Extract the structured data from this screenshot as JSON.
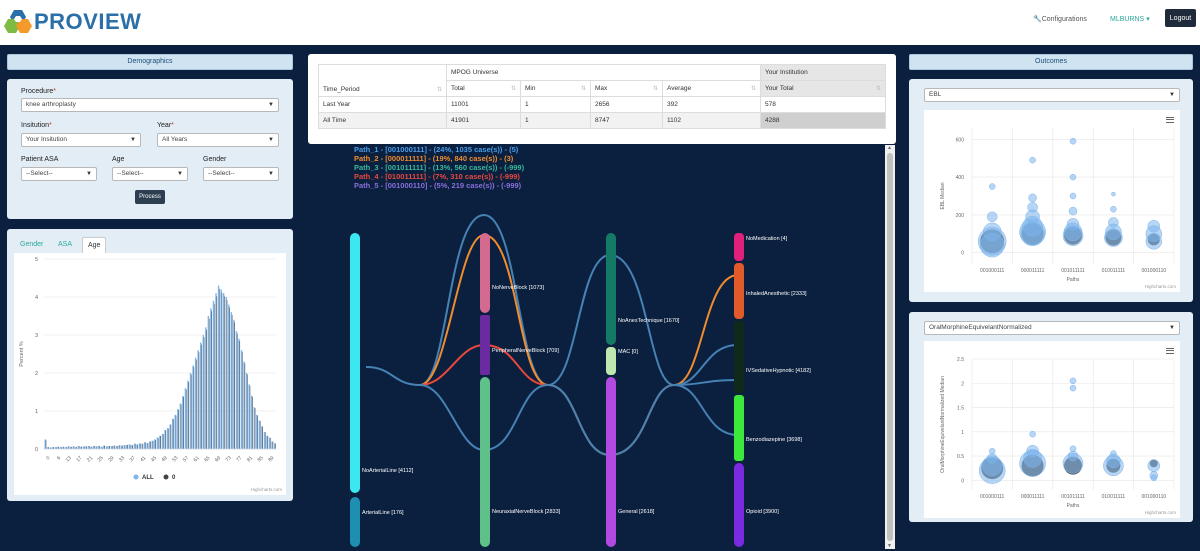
{
  "header": {
    "logo": "PROVIEW",
    "configurations": "Configurations",
    "user": "MLBURNS",
    "logout": "Logout"
  },
  "demographics": {
    "title": "Demographics",
    "procedure_label": "Procedure",
    "procedure_value": "knee arthroplasty",
    "institution_label": "Insitution",
    "institution_value": "Your Insitution",
    "year_label": "Year",
    "year_value": "All Years",
    "asa_label": "Patient ASA",
    "asa_value": "--Select--",
    "age_label": "Age",
    "age_value": "--Select--",
    "gender_label": "Gender",
    "gender_value": "--Select--",
    "process": "Process"
  },
  "age_panel": {
    "tabs": [
      "Gender",
      "ASA",
      "Age"
    ],
    "credit": "Highcharts.com"
  },
  "summary_table": {
    "col_period": "Time_Period",
    "group_universe": "MPOG Universe",
    "group_institution": "Your Institution",
    "columns": [
      "Total",
      "Min",
      "Max",
      "Average",
      "Your Total"
    ],
    "rows": [
      {
        "period": "Last Year",
        "values": [
          "11001",
          "1",
          "2656",
          "392",
          "578"
        ]
      },
      {
        "period": "All Time",
        "values": [
          "41901",
          "1",
          "8747",
          "1102",
          "4288"
        ]
      }
    ]
  },
  "sankey": {
    "legend": [
      {
        "text": "Path_1 - [001000111] - (24%, 1035 case(s)) - (5)",
        "color": "#4a9ee8"
      },
      {
        "text": "Path_2 - [000011111] - (19%, 840 case(s)) - (3)",
        "color": "#f08c2e"
      },
      {
        "text": "Path_3 - [001011111] - (13%, 560 case(s)) - (-999)",
        "color": "#3cb89a"
      },
      {
        "text": "Path_4 - [010011111] - (7%, 310 case(s)) - (-999)",
        "color": "#e8493c"
      },
      {
        "text": "Path_5 - [001000110] - (5%, 219 case(s)) - (-999)",
        "color": "#8a6fd8"
      }
    ],
    "nodes": {
      "no_arterial": "NoArterialLine [4112]",
      "arterial": "ArterialLine [176]",
      "no_nerve": "NoNerveBlock [1073]",
      "peripheral": "PeripheralNerveBlock [709]",
      "neuraxial": "NeuraxialNerveBlock [2833]",
      "no_anes": "NoAnesTechnique [1670]",
      "mac": "MAC [0]",
      "general": "General [2618]",
      "no_med": "NoMedication [4]",
      "inhaled": "InhaledAnesthetic [2333]",
      "iv_sed": "IVSedativeHypnotic [4182]",
      "benzo": "Benzodiazepine [3698]",
      "opioid": "Opioid [3900]"
    }
  },
  "outcomes": {
    "title": "Outcomes",
    "credit": "Highcharts.com",
    "ebl_select": "EBL",
    "ome_select": "OralMorphineEquivelantNormalized"
  },
  "chart_data": [
    {
      "type": "bar",
      "ylabel": "Percent %",
      "ylim": [
        0,
        5
      ],
      "yticks": [
        0,
        1,
        2,
        3,
        4,
        5
      ],
      "xticks": [
        "0",
        "6",
        "13",
        "17",
        "21",
        "25",
        "29",
        "33",
        "37",
        "41",
        "45",
        "49",
        "53",
        "57",
        "61",
        "65",
        "69",
        "73",
        "77",
        "81",
        "85",
        "89"
      ],
      "legend": [
        "ALL",
        "0"
      ],
      "series_colors": [
        "#7cb5ec",
        "#434348"
      ],
      "x_start": 0,
      "values": [
        0.25,
        0.05,
        0.04,
        0.05,
        0.05,
        0.06,
        0.05,
        0.06,
        0.05,
        0.07,
        0.06,
        0.07,
        0.05,
        0.08,
        0.06,
        0.07,
        0.07,
        0.08,
        0.06,
        0.08,
        0.07,
        0.08,
        0.06,
        0.09,
        0.07,
        0.08,
        0.08,
        0.09,
        0.08,
        0.1,
        0.09,
        0.1,
        0.11,
        0.12,
        0.1,
        0.14,
        0.12,
        0.15,
        0.14,
        0.18,
        0.16,
        0.2,
        0.22,
        0.25,
        0.3,
        0.35,
        0.4,
        0.5,
        0.55,
        0.65,
        0.8,
        0.9,
        1.05,
        1.2,
        1.4,
        1.6,
        1.8,
        2.0,
        2.2,
        2.4,
        2.6,
        2.8,
        3.0,
        3.2,
        3.5,
        3.7,
        3.9,
        4.1,
        4.3,
        4.2,
        4.1,
        4.0,
        3.8,
        3.6,
        3.4,
        3.1,
        2.9,
        2.6,
        2.3,
        2.0,
        1.7,
        1.4,
        1.1,
        0.9,
        0.75,
        0.6,
        0.45,
        0.35,
        0.3,
        0.2,
        0.15
      ]
    },
    {
      "type": "scatter",
      "xlabel": "Paths",
      "ylabel": "EBL Median",
      "ylim": [
        -60,
        660
      ],
      "yticks": [
        0,
        200,
        400,
        600
      ],
      "categories": [
        "001000111",
        "000011111",
        "001011111",
        "010011111",
        "001000110"
      ],
      "bubbles": [
        {
          "c": 0,
          "y": 350,
          "r": 3
        },
        {
          "c": 0,
          "y": 190,
          "r": 5
        },
        {
          "c": 0,
          "y": 110,
          "r": 9
        },
        {
          "c": 0,
          "y": 60,
          "r": 14
        },
        {
          "c": 0,
          "y": 40,
          "r": 12
        },
        {
          "c": 1,
          "y": 490,
          "r": 3
        },
        {
          "c": 1,
          "y": 290,
          "r": 4
        },
        {
          "c": 1,
          "y": 240,
          "r": 5
        },
        {
          "c": 1,
          "y": 190,
          "r": 7
        },
        {
          "c": 1,
          "y": 140,
          "r": 10
        },
        {
          "c": 1,
          "y": 110,
          "r": 13
        },
        {
          "c": 1,
          "y": 100,
          "r": 12
        },
        {
          "c": 2,
          "y": 590,
          "r": 3
        },
        {
          "c": 2,
          "y": 400,
          "r": 3
        },
        {
          "c": 2,
          "y": 300,
          "r": 3
        },
        {
          "c": 2,
          "y": 220,
          "r": 4
        },
        {
          "c": 2,
          "y": 150,
          "r": 6
        },
        {
          "c": 2,
          "y": 110,
          "r": 9
        },
        {
          "c": 2,
          "y": 90,
          "r": 10
        },
        {
          "c": 3,
          "y": 310,
          "r": 2
        },
        {
          "c": 3,
          "y": 230,
          "r": 3
        },
        {
          "c": 3,
          "y": 160,
          "r": 5
        },
        {
          "c": 3,
          "y": 110,
          "r": 8
        },
        {
          "c": 3,
          "y": 80,
          "r": 9
        },
        {
          "c": 4,
          "y": 140,
          "r": 6
        },
        {
          "c": 4,
          "y": 100,
          "r": 8
        },
        {
          "c": 4,
          "y": 60,
          "r": 8
        }
      ],
      "dark": [
        {
          "c": 0,
          "y": 60,
          "r": 12
        },
        {
          "c": 1,
          "y": 100,
          "r": 11
        },
        {
          "c": 2,
          "y": 90,
          "r": 9
        },
        {
          "c": 3,
          "y": 80,
          "r": 8
        },
        {
          "c": 4,
          "y": 70,
          "r": 6
        }
      ],
      "credit": "Highcharts.com"
    },
    {
      "type": "scatter",
      "xlabel": "Paths",
      "ylabel": "OralMorphineEquivelantNormalized Median",
      "ylim": [
        -0.2,
        2.5
      ],
      "yticks": [
        0,
        0.5,
        1,
        1.5,
        2,
        2.5
      ],
      "categories": [
        "001000111",
        "000011111",
        "001011111",
        "010011111",
        "001000110"
      ],
      "bubbles": [
        {
          "c": 0,
          "y": 0.6,
          "r": 3
        },
        {
          "c": 0,
          "y": 0.45,
          "r": 5
        },
        {
          "c": 0,
          "y": 0.3,
          "r": 10
        },
        {
          "c": 0,
          "y": 0.2,
          "r": 13
        },
        {
          "c": 1,
          "y": 0.95,
          "r": 3
        },
        {
          "c": 1,
          "y": 0.6,
          "r": 6
        },
        {
          "c": 1,
          "y": 0.45,
          "r": 9
        },
        {
          "c": 1,
          "y": 0.35,
          "r": 13
        },
        {
          "c": 2,
          "y": 2.05,
          "r": 3
        },
        {
          "c": 2,
          "y": 1.9,
          "r": 3
        },
        {
          "c": 2,
          "y": 0.65,
          "r": 3
        },
        {
          "c": 2,
          "y": 0.5,
          "r": 5
        },
        {
          "c": 2,
          "y": 0.35,
          "r": 10
        },
        {
          "c": 3,
          "y": 0.55,
          "r": 3
        },
        {
          "c": 3,
          "y": 0.4,
          "r": 7
        },
        {
          "c": 3,
          "y": 0.3,
          "r": 10
        },
        {
          "c": 4,
          "y": 0.3,
          "r": 6
        },
        {
          "c": 4,
          "y": 0.1,
          "r": 4
        },
        {
          "c": 4,
          "y": 0.05,
          "r": 3
        }
      ],
      "dark": [
        {
          "c": 0,
          "y": 0.25,
          "r": 11
        },
        {
          "c": 1,
          "y": 0.3,
          "r": 11
        },
        {
          "c": 2,
          "y": 0.3,
          "r": 9
        },
        {
          "c": 3,
          "y": 0.3,
          "r": 7
        },
        {
          "c": 4,
          "y": 0.35,
          "r": 4
        }
      ],
      "credit": "Highcharts.com"
    }
  ]
}
